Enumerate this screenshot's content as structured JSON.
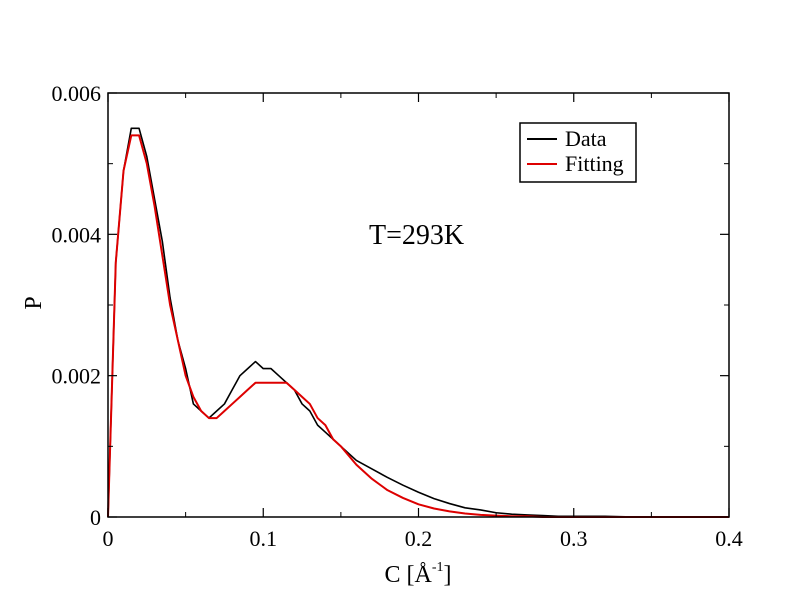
{
  "chart_data": {
    "type": "line",
    "xlabel": "C [Å",
    "xlabel_sup": "-1",
    "xlabel_close": "]",
    "ylabel": "P",
    "annotation": "T=293K",
    "xlim": [
      0,
      0.4
    ],
    "ylim": [
      0,
      0.006
    ],
    "x_ticks": [
      0,
      0.1,
      0.2,
      0.3,
      0.4
    ],
    "x_tick_labels": [
      "0",
      "0.1",
      "0.2",
      "0.3",
      "0.4"
    ],
    "y_ticks": [
      0,
      0.002,
      0.004,
      0.006
    ],
    "y_tick_labels": [
      "0",
      "0.002",
      "0.004",
      "0.006"
    ],
    "grid": false,
    "legend_position": "top-right",
    "series": [
      {
        "name": "Data",
        "color": "#000000",
        "x": [
          0.0,
          0.005,
          0.01,
          0.015,
          0.02,
          0.025,
          0.03,
          0.035,
          0.04,
          0.045,
          0.05,
          0.055,
          0.06,
          0.065,
          0.07,
          0.075,
          0.08,
          0.085,
          0.09,
          0.095,
          0.1,
          0.105,
          0.11,
          0.115,
          0.12,
          0.125,
          0.13,
          0.135,
          0.14,
          0.145,
          0.15,
          0.16,
          0.17,
          0.18,
          0.19,
          0.2,
          0.21,
          0.22,
          0.23,
          0.24,
          0.25,
          0.26,
          0.27,
          0.28,
          0.29,
          0.3,
          0.32,
          0.34,
          0.36,
          0.38,
          0.4
        ],
        "y": [
          0.0,
          0.0036,
          0.0049,
          0.0055,
          0.0055,
          0.0051,
          0.0045,
          0.0039,
          0.0031,
          0.0025,
          0.0021,
          0.0016,
          0.0015,
          0.0014,
          0.0015,
          0.0016,
          0.0018,
          0.002,
          0.0021,
          0.0022,
          0.0021,
          0.0021,
          0.002,
          0.0019,
          0.0018,
          0.0016,
          0.0015,
          0.0013,
          0.0012,
          0.0011,
          0.001,
          0.0008,
          0.00068,
          0.00056,
          0.00045,
          0.00035,
          0.00026,
          0.00019,
          0.00013,
          0.0001,
          6e-05,
          4e-05,
          3e-05,
          2e-05,
          1e-05,
          1e-05,
          1e-05,
          0.0,
          0.0,
          0.0,
          0.0
        ]
      },
      {
        "name": "Fitting",
        "color": "#dd0000",
        "x": [
          0.0,
          0.005,
          0.01,
          0.015,
          0.02,
          0.025,
          0.03,
          0.035,
          0.04,
          0.045,
          0.05,
          0.055,
          0.06,
          0.065,
          0.07,
          0.075,
          0.08,
          0.085,
          0.09,
          0.095,
          0.1,
          0.105,
          0.11,
          0.115,
          0.12,
          0.125,
          0.13,
          0.135,
          0.14,
          0.145,
          0.15,
          0.16,
          0.17,
          0.18,
          0.19,
          0.2,
          0.21,
          0.22,
          0.23,
          0.24,
          0.25,
          0.26,
          0.27,
          0.28,
          0.29,
          0.3,
          0.32,
          0.34,
          0.36,
          0.38,
          0.4
        ],
        "y": [
          0.0,
          0.0036,
          0.0049,
          0.0054,
          0.0054,
          0.005,
          0.0044,
          0.0037,
          0.003,
          0.0025,
          0.002,
          0.0017,
          0.0015,
          0.0014,
          0.0014,
          0.0015,
          0.0016,
          0.0017,
          0.0018,
          0.0019,
          0.0019,
          0.0019,
          0.0019,
          0.0019,
          0.0018,
          0.0017,
          0.0016,
          0.0014,
          0.0013,
          0.0011,
          0.001,
          0.00074,
          0.00054,
          0.00038,
          0.00027,
          0.00018,
          0.00012,
          8e-05,
          5e-05,
          3e-05,
          2e-05,
          1e-05,
          1e-05,
          0.0,
          0.0,
          0.0,
          0.0,
          0.0,
          0.0,
          0.0,
          0.0
        ]
      }
    ]
  }
}
